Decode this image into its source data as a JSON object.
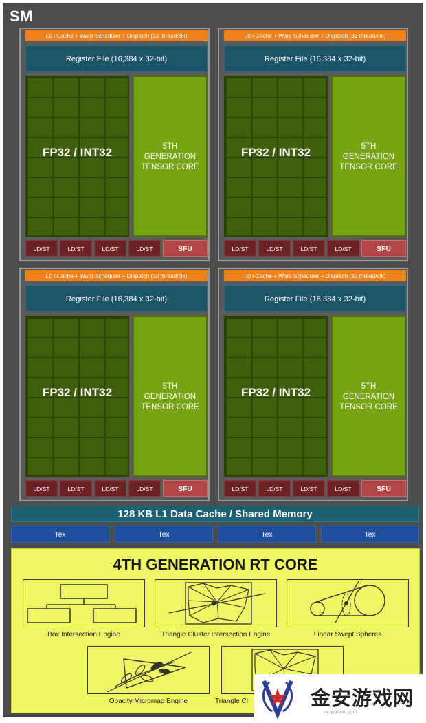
{
  "sm_label": "SM",
  "quadrant": {
    "l0_text": "L0 i-Cache + Warp Scheduler + Dispatch (32 thread/clk)",
    "register_file": "Register File (16,384 x 32-bit)",
    "fp_label": "FP32 / INT32",
    "tensor_lines": [
      "5TH",
      "GENERATION",
      "TENSOR CORE"
    ],
    "ldst_label": "LD/ST",
    "sfu_label": "SFU"
  },
  "l1_cache": "128 KB L1 Data Cache / Shared Memory",
  "tex_label": "Tex",
  "rt_core": {
    "title": "4TH GENERATION RT CORE",
    "engines": [
      "Box Intersection Engine",
      "Triangle Cluster Intersection Engine",
      "Linear Swept Spheres",
      "Opacity Micromap Engine",
      "Triangle Cl"
    ]
  },
  "watermark": {
    "text": "金安游戏网",
    "url": "ncqiqutorc.com"
  },
  "colors": {
    "l0": "#f0821e",
    "register_file": "#1c5468",
    "fp32": "#3f5f0c",
    "tensor": "#76a412",
    "ldst": "#6b2224",
    "sfu": "#b14646",
    "l1": "#1f6070",
    "tex": "#1f4f9c",
    "rt_core": "#eff664"
  }
}
